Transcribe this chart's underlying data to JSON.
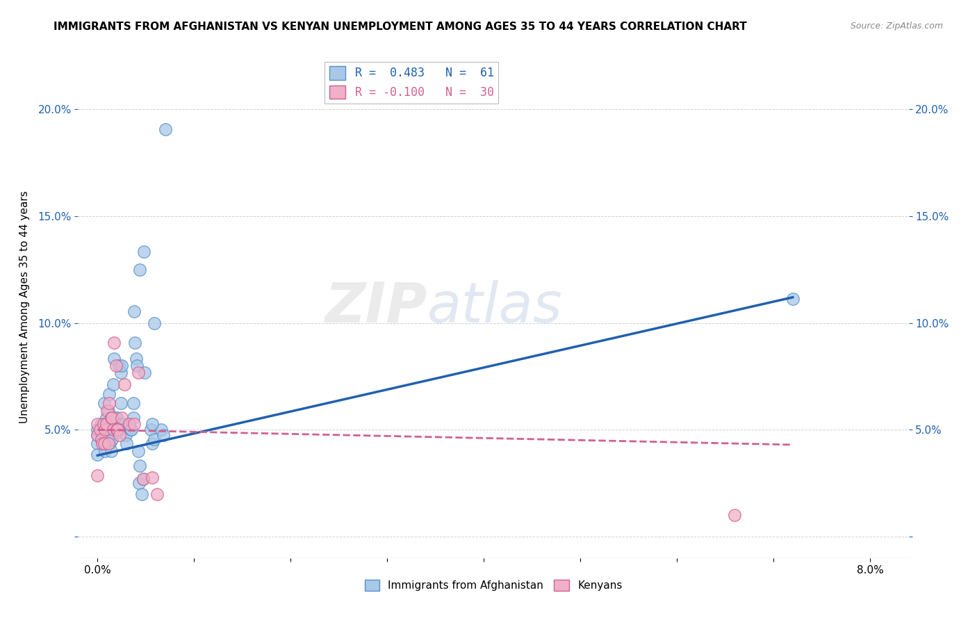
{
  "title": "IMMIGRANTS FROM AFGHANISTAN VS KENYAN UNEMPLOYMENT AMONG AGES 35 TO 44 YEARS CORRELATION CHART",
  "source": "Source: ZipAtlas.com",
  "ylabel": "Unemployment Among Ages 35 to 44 years",
  "x_ticks": [
    0.0,
    0.01,
    0.02,
    0.03,
    0.04,
    0.05,
    0.06,
    0.07,
    0.08
  ],
  "x_tick_labels": [
    "0.0%",
    "",
    "",
    "",
    "",
    "",
    "",
    "",
    "8.0%"
  ],
  "y_ticks": [
    0.0,
    0.05,
    0.1,
    0.15,
    0.2
  ],
  "y_tick_labels": [
    "",
    "5.0%",
    "10.0%",
    "15.0%",
    "20.0%"
  ],
  "xlim": [
    -0.002,
    0.084
  ],
  "ylim": [
    -0.01,
    0.225
  ],
  "legend_label1": "Immigrants from Afghanistan",
  "legend_label2": "Kenyans",
  "watermark": "ZIPatlas",
  "blue_color": "#a8c8e8",
  "pink_color": "#f0b0c8",
  "blue_edge_color": "#5590c8",
  "pink_edge_color": "#d06090",
  "blue_line_color": "#2060b0",
  "pink_line_color": "#d06090",
  "blue_scatter": [
    [
      0.0,
      0.0476
    ],
    [
      0.0,
      0.05
    ],
    [
      0.0,
      0.0435
    ],
    [
      0.0,
      0.0385
    ],
    [
      0.0004,
      0.0526
    ],
    [
      0.0004,
      0.0455
    ],
    [
      0.0005,
      0.05
    ],
    [
      0.0006,
      0.0476
    ],
    [
      0.0007,
      0.0625
    ],
    [
      0.0008,
      0.04
    ],
    [
      0.0009,
      0.0526
    ],
    [
      0.0009,
      0.0556
    ],
    [
      0.001,
      0.0435
    ],
    [
      0.0011,
      0.0588
    ],
    [
      0.0012,
      0.0667
    ],
    [
      0.0012,
      0.05
    ],
    [
      0.0013,
      0.0435
    ],
    [
      0.0014,
      0.04
    ],
    [
      0.0015,
      0.0455
    ],
    [
      0.0016,
      0.0714
    ],
    [
      0.0017,
      0.0833
    ],
    [
      0.0018,
      0.0526
    ],
    [
      0.0019,
      0.0556
    ],
    [
      0.002,
      0.0556
    ],
    [
      0.0021,
      0.0488
    ],
    [
      0.0021,
      0.05
    ],
    [
      0.0022,
      0.08
    ],
    [
      0.0023,
      0.0526
    ],
    [
      0.0024,
      0.0625
    ],
    [
      0.0024,
      0.0769
    ],
    [
      0.0025,
      0.08
    ],
    [
      0.0026,
      0.0526
    ],
    [
      0.0028,
      0.0526
    ],
    [
      0.0029,
      0.0476
    ],
    [
      0.003,
      0.0435
    ],
    [
      0.0033,
      0.0526
    ],
    [
      0.0034,
      0.05
    ],
    [
      0.0035,
      0.05
    ],
    [
      0.0037,
      0.0625
    ],
    [
      0.0037,
      0.0556
    ],
    [
      0.0038,
      0.1053
    ],
    [
      0.0039,
      0.0909
    ],
    [
      0.004,
      0.0833
    ],
    [
      0.0041,
      0.08
    ],
    [
      0.0042,
      0.04
    ],
    [
      0.0043,
      0.025
    ],
    [
      0.0044,
      0.0333
    ],
    [
      0.0044,
      0.125
    ],
    [
      0.0046,
      0.02
    ],
    [
      0.0047,
      0.027
    ],
    [
      0.0048,
      0.1333
    ],
    [
      0.0049,
      0.0769
    ],
    [
      0.0055,
      0.05
    ],
    [
      0.0057,
      0.0435
    ],
    [
      0.0059,
      0.0455
    ],
    [
      0.0066,
      0.05
    ],
    [
      0.0068,
      0.0476
    ],
    [
      0.007,
      0.1905
    ],
    [
      0.0057,
      0.0526
    ],
    [
      0.0059,
      0.1
    ],
    [
      0.072,
      0.1111
    ]
  ],
  "pink_scatter": [
    [
      0.0,
      0.0476
    ],
    [
      0.0,
      0.0526
    ],
    [
      0.0,
      0.0286
    ],
    [
      0.0003,
      0.05
    ],
    [
      0.0004,
      0.0455
    ],
    [
      0.0005,
      0.0435
    ],
    [
      0.0006,
      0.0526
    ],
    [
      0.0007,
      0.0435
    ],
    [
      0.0008,
      0.05
    ],
    [
      0.0009,
      0.0526
    ],
    [
      0.001,
      0.0588
    ],
    [
      0.0011,
      0.0435
    ],
    [
      0.0012,
      0.0625
    ],
    [
      0.0014,
      0.0556
    ],
    [
      0.0015,
      0.0556
    ],
    [
      0.0016,
      0.05
    ],
    [
      0.0017,
      0.0909
    ],
    [
      0.0019,
      0.08
    ],
    [
      0.002,
      0.05
    ],
    [
      0.0021,
      0.05
    ],
    [
      0.0023,
      0.0476
    ],
    [
      0.0025,
      0.0556
    ],
    [
      0.0028,
      0.0714
    ],
    [
      0.0033,
      0.0526
    ],
    [
      0.0038,
      0.0526
    ],
    [
      0.0042,
      0.0769
    ],
    [
      0.0047,
      0.027
    ],
    [
      0.0057,
      0.0278
    ],
    [
      0.0062,
      0.02
    ],
    [
      0.066,
      0.01
    ]
  ],
  "blue_trend_x": [
    0.0,
    0.072
  ],
  "blue_trend_y": [
    0.038,
    0.112
  ],
  "pink_trend_x": [
    0.0,
    0.072
  ],
  "pink_trend_y": [
    0.05,
    0.043
  ]
}
